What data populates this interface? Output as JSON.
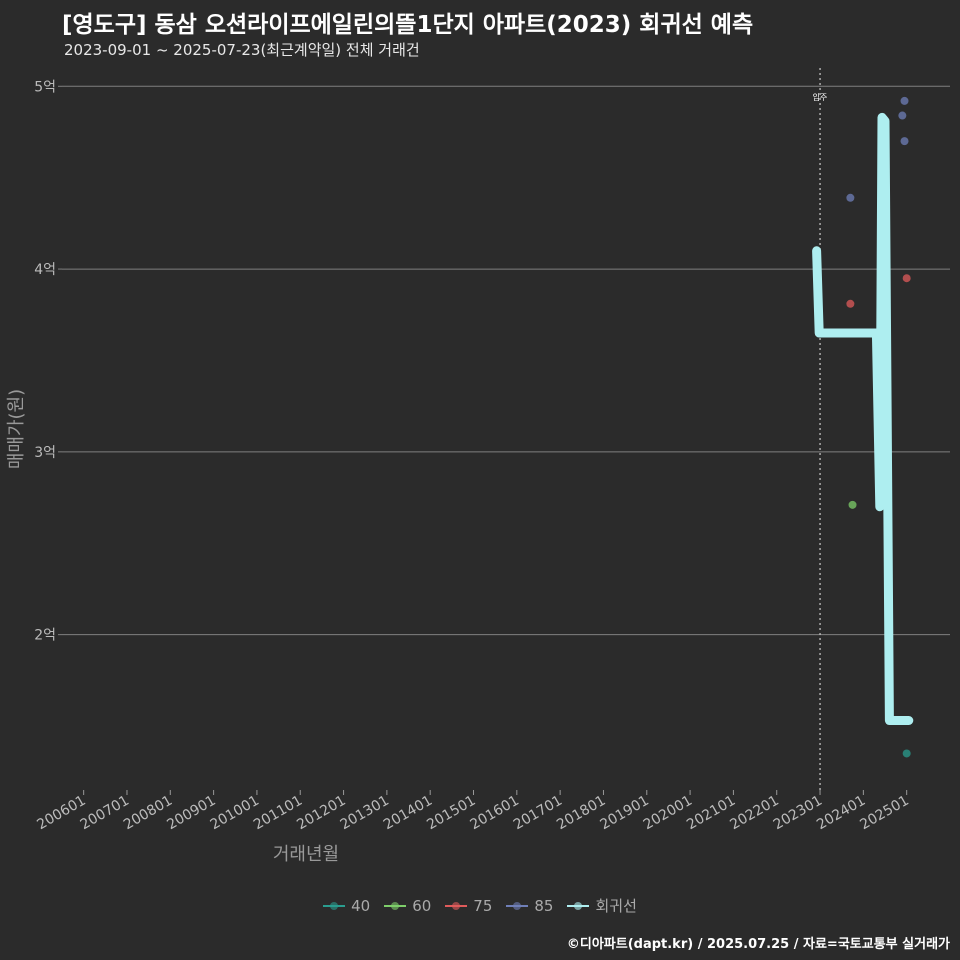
{
  "title": "[영도구] 동삼 오션라이프에일린의뜰1단지 아파트(2023) 회귀선 예측",
  "subtitle": "2023-09-01 ~ 2025-07-23(최근계약일) 전체 거래건",
  "footer": "©디아파트(dapt.kr) / 2025.07.25 / 자료=국토교통부 실거래가",
  "colors": {
    "background": "#2b2b2b",
    "grid": "#808080",
    "regression": "#aeeef0",
    "s40": "#2a9d8f",
    "s60": "#7ecf6a",
    "s75": "#e05b5b",
    "s85": "#6f7fb8"
  },
  "chart_data": {
    "type": "scatter",
    "title": "[영도구] 동삼 오션라이프에일린의뜰1단지 아파트(2023) 회귀선 예측",
    "xlabel": "거래년월",
    "ylabel": "매매가(원)",
    "x_ticks": [
      "200601",
      "200701",
      "200801",
      "200901",
      "201001",
      "201101",
      "201201",
      "201301",
      "201401",
      "201501",
      "201601",
      "201701",
      "201801",
      "201901",
      "202001",
      "202101",
      "202201",
      "202301",
      "202401",
      "202501"
    ],
    "x_range": [
      2005.5,
      2026.0
    ],
    "y_ticks": [
      2,
      3,
      4,
      5
    ],
    "y_tick_labels": [
      "2억",
      "3억",
      "4억",
      "5억"
    ],
    "y_range": [
      1.15,
      5.1
    ],
    "y_unit": "억",
    "vline": {
      "x": 2023.0,
      "label": "입주"
    },
    "series": [
      {
        "name": "40",
        "points": [
          {
            "x": 2025.0,
            "y": 1.35
          }
        ]
      },
      {
        "name": "60",
        "points": [
          {
            "x": 2023.75,
            "y": 2.71
          }
        ]
      },
      {
        "name": "75",
        "points": [
          {
            "x": 2023.7,
            "y": 3.81
          },
          {
            "x": 2025.0,
            "y": 3.95
          }
        ]
      },
      {
        "name": "85",
        "points": [
          {
            "x": 2023.7,
            "y": 4.39
          },
          {
            "x": 2024.9,
            "y": 4.84
          },
          {
            "x": 2024.95,
            "y": 4.92
          },
          {
            "x": 2024.95,
            "y": 4.7
          }
        ]
      },
      {
        "name": "회귀선",
        "line": [
          {
            "x": 2022.92,
            "y": 4.1
          },
          {
            "x": 2022.98,
            "y": 3.65
          },
          {
            "x": 2024.3,
            "y": 3.65
          },
          {
            "x": 2024.38,
            "y": 2.7
          },
          {
            "x": 2024.43,
            "y": 4.83
          },
          {
            "x": 2024.5,
            "y": 4.81
          },
          {
            "x": 2024.6,
            "y": 1.53
          },
          {
            "x": 2025.05,
            "y": 1.53
          }
        ]
      }
    ]
  },
  "legend": [
    {
      "label": "40",
      "color": "#2a9d8f"
    },
    {
      "label": "60",
      "color": "#7ecf6a"
    },
    {
      "label": "75",
      "color": "#e05b5b"
    },
    {
      "label": "85",
      "color": "#6f7fb8"
    },
    {
      "label": "회귀선",
      "color": "#aeeef0"
    }
  ]
}
